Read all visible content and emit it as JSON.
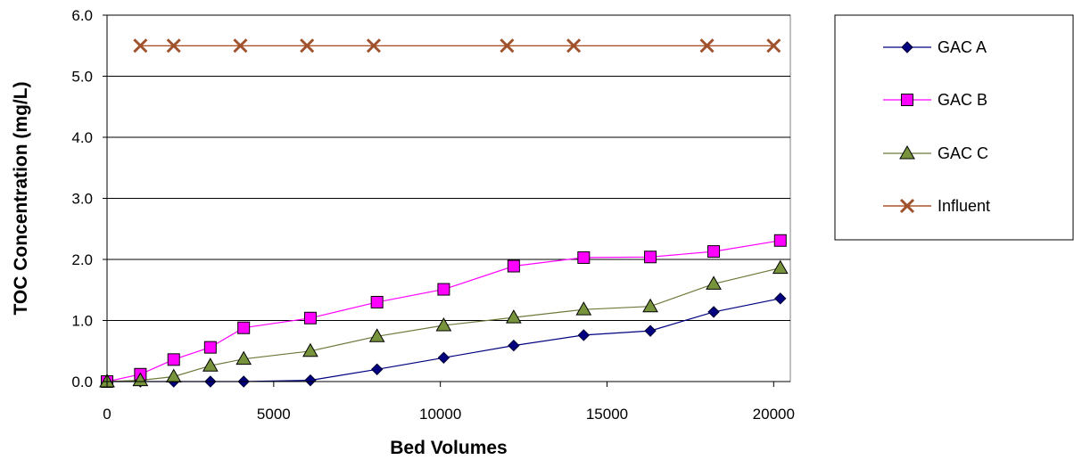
{
  "chart_data": {
    "type": "line",
    "xlabel": "Bed Volumes",
    "ylabel": "TOC Concentration (mg/L)",
    "xlim": [
      0,
      20500
    ],
    "ylim": [
      0,
      6
    ],
    "x_ticks": [
      0,
      5000,
      10000,
      15000,
      20000
    ],
    "x_tick_labels": [
      "0",
      "5000",
      "10000",
      "15000",
      "20000"
    ],
    "y_ticks": [
      0,
      1,
      2,
      3,
      4,
      5,
      6
    ],
    "y_tick_labels": [
      "0.0",
      "1.0",
      "2.0",
      "3.0",
      "4.0",
      "5.0",
      "6.0"
    ],
    "grid": "horizontal major gridlines",
    "legend_position": "right",
    "series": [
      {
        "name": "GAC A",
        "marker": "diamond",
        "line_color": "#000080",
        "marker_fill": "#000080",
        "x": [
          0,
          1000,
          2000,
          3100,
          4100,
          6100,
          8100,
          10100,
          12200,
          14300,
          16300,
          18200,
          20200
        ],
        "y": [
          0,
          0,
          0,
          0,
          0,
          0.02,
          0.2,
          0.39,
          0.59,
          0.76,
          0.83,
          1.14,
          1.36
        ]
      },
      {
        "name": "GAC B",
        "marker": "square",
        "line_color": "#ff00ff",
        "marker_fill": "#ff00ff",
        "x": [
          0,
          1000,
          2000,
          3100,
          4100,
          6100,
          8100,
          10100,
          12200,
          14300,
          16300,
          18200,
          20200
        ],
        "y": [
          0,
          0.12,
          0.36,
          0.56,
          0.88,
          1.04,
          1.3,
          1.51,
          1.89,
          2.03,
          2.04,
          2.13,
          2.31
        ]
      },
      {
        "name": "GAC C",
        "marker": "triangle",
        "line_color": "#6b7a3a",
        "marker_fill": "#77933c",
        "x": [
          0,
          1000,
          2000,
          3100,
          4100,
          6100,
          8100,
          10100,
          12200,
          14300,
          16300,
          18200,
          20200
        ],
        "y": [
          0,
          0.02,
          0.08,
          0.26,
          0.37,
          0.5,
          0.74,
          0.92,
          1.05,
          1.18,
          1.23,
          1.6,
          1.86
        ]
      },
      {
        "name": "Influent",
        "marker": "x",
        "line_color": "#993300",
        "marker_fill": "#a0522d",
        "x": [
          1000,
          2000,
          4000,
          6000,
          8000,
          12000,
          14000,
          18000,
          20000
        ],
        "y": [
          5.5,
          5.5,
          5.5,
          5.5,
          5.5,
          5.5,
          5.5,
          5.5,
          5.5
        ]
      }
    ]
  }
}
